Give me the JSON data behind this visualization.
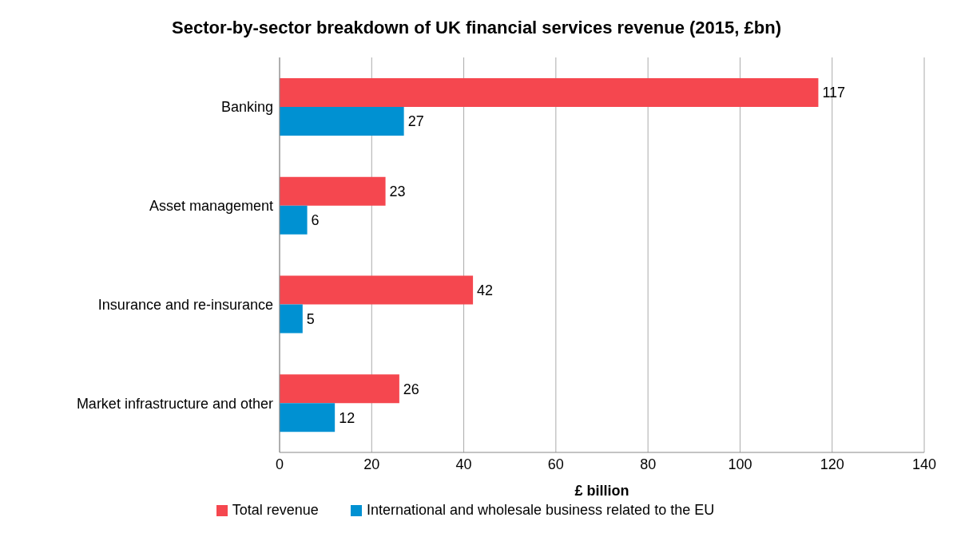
{
  "chart_data": {
    "type": "bar",
    "orientation": "horizontal",
    "title": "Sector-by-sector breakdown of UK financial services revenue (2015, £bn)",
    "xlabel": "£ billion",
    "categories": [
      "Banking",
      "Asset management",
      "Insurance and re-insurance",
      "Market infrastructure and other"
    ],
    "series": [
      {
        "name": "Total revenue",
        "color": "#f5474f",
        "values": [
          117,
          23,
          42,
          26
        ]
      },
      {
        "name": "International and wholesale business related to the EU",
        "color": "#0091d2",
        "values": [
          27,
          6,
          5,
          12
        ]
      }
    ],
    "xlim": [
      0,
      140
    ],
    "xticks": [
      0,
      20,
      40,
      60,
      80,
      100,
      120,
      140
    ],
    "grid": "x",
    "legend": "bottom",
    "data_labels": true
  }
}
